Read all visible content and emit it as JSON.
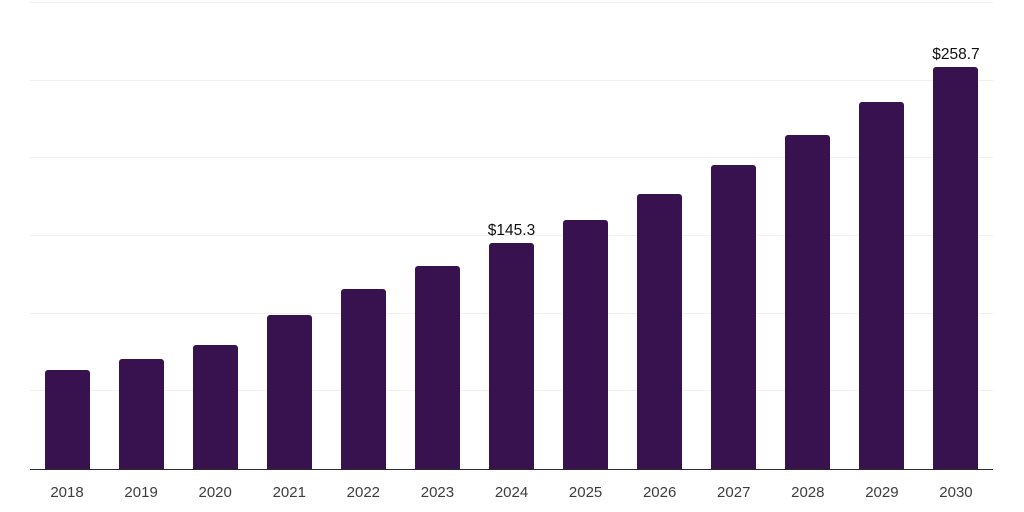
{
  "chart_data": {
    "type": "bar",
    "title": "",
    "xlabel": "",
    "ylabel": "",
    "categories": [
      "2018",
      "2019",
      "2020",
      "2021",
      "2022",
      "2023",
      "2024",
      "2025",
      "2026",
      "2027",
      "2028",
      "2029",
      "2030"
    ],
    "values": [
      64.0,
      70.7,
      79.9,
      98.9,
      116.2,
      130.4,
      145.3,
      160.4,
      177.3,
      196.0,
      215.2,
      236.5,
      258.7
    ],
    "data_labels": [
      "",
      "",
      "",
      "",
      "",
      "",
      "$145.3",
      "",
      "",
      "",
      "",
      "",
      "$258.7"
    ],
    "unit_prefix": "$",
    "ylim": [
      0,
      300
    ],
    "gridline_step": 50,
    "grid": true,
    "legend_position": "none",
    "colors": {
      "bar": "#38124f",
      "gridline": "#f1f1f1",
      "axis": "#2b2b2b",
      "tick_label": "#3d3d3d",
      "data_label": "#0f0f0f",
      "background": "#ffffff"
    }
  }
}
